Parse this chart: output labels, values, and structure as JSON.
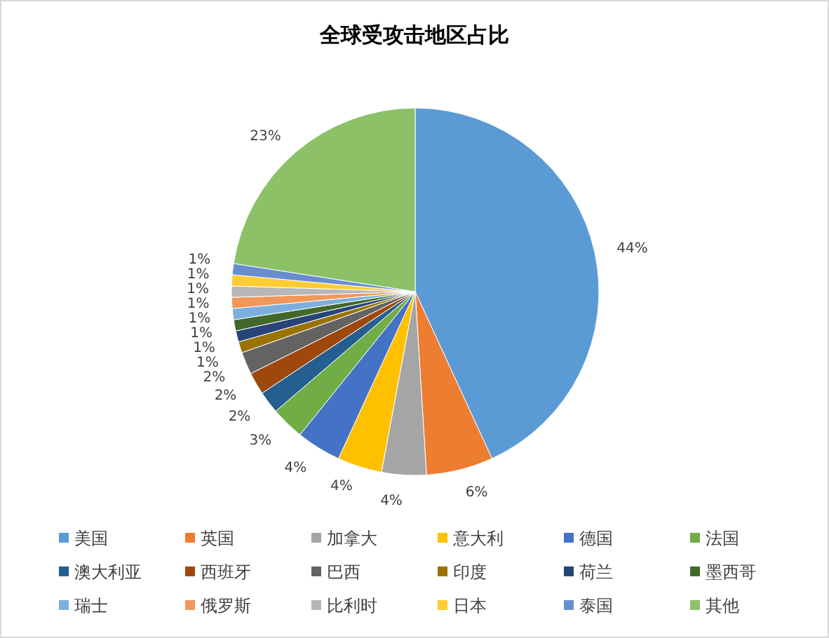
{
  "chart_data": {
    "type": "pie",
    "title": "全球受攻击地区占比",
    "categories": [
      "美国",
      "英国",
      "加拿大",
      "意大利",
      "德国",
      "法国",
      "澳大利亚",
      "西班牙",
      "巴西",
      "印度",
      "荷兰",
      "墨西哥",
      "瑞士",
      "俄罗斯",
      "比利时",
      "日本",
      "泰国",
      "其他"
    ],
    "values": [
      44,
      6,
      4,
      4,
      4,
      3,
      2,
      2,
      2,
      1,
      1,
      1,
      1,
      1,
      1,
      1,
      1,
      23
    ],
    "value_labels": [
      "44%",
      "6%",
      "4%",
      "4%",
      "4%",
      "3%",
      "2%",
      "2%",
      "2%",
      "1%",
      "1%",
      "1%",
      "1%",
      "1%",
      "1%",
      "1%",
      "1%",
      "23%"
    ],
    "colors": [
      "#5b9bd5",
      "#ed7d31",
      "#a5a5a5",
      "#ffc000",
      "#4472c4",
      "#70ad47",
      "#255e91",
      "#9e480e",
      "#636363",
      "#997300",
      "#264478",
      "#43682b",
      "#7cafdd",
      "#f1975a",
      "#b7b7b7",
      "#ffcd33",
      "#698ed0",
      "#8cc168"
    ],
    "legend": "bottom"
  }
}
